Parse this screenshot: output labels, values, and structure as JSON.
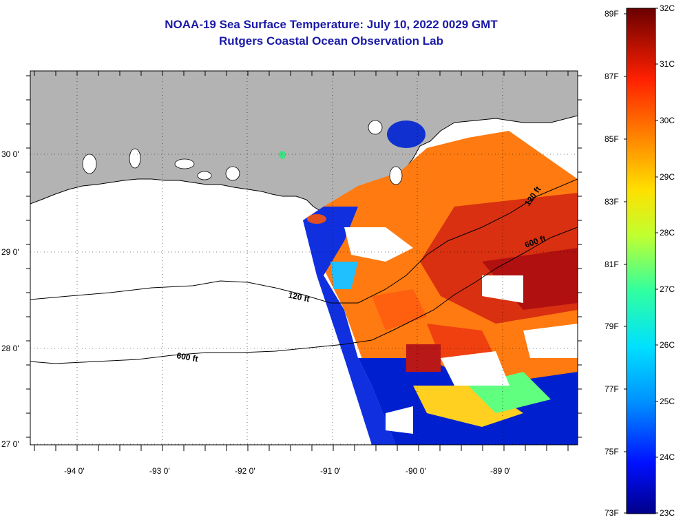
{
  "title": "NOAA-19 Sea Surface Temperature:  July 10, 2022 0029 GMT",
  "subtitle": "Rutgers Coastal Ocean Observation Lab",
  "axes": {
    "longitude_labels": [
      "-94 0'",
      "-93 0'",
      "-92 0'",
      "-91 0'",
      "-90 0'",
      "-89 0'"
    ],
    "latitude_labels": [
      "30 0'",
      "29 0'",
      "28 0'",
      "27 0'"
    ]
  },
  "contours": {
    "shelf_label": "120 ft",
    "slope_label": "600 ft"
  },
  "colorbar": {
    "fahrenheit": [
      "89F",
      "87F",
      "85F",
      "83F",
      "81F",
      "79F",
      "77F",
      "75F",
      "73F"
    ],
    "celsius": [
      "32C",
      "31C",
      "30C",
      "29C",
      "28C",
      "27C",
      "26C",
      "25C",
      "24C",
      "23C"
    ],
    "colors": [
      "#7a0000",
      "#c00000",
      "#ff3000",
      "#ff8000",
      "#ffd000",
      "#c8ff30",
      "#40ffc0",
      "#00c0ff",
      "#0050ff",
      "#000090"
    ]
  }
}
